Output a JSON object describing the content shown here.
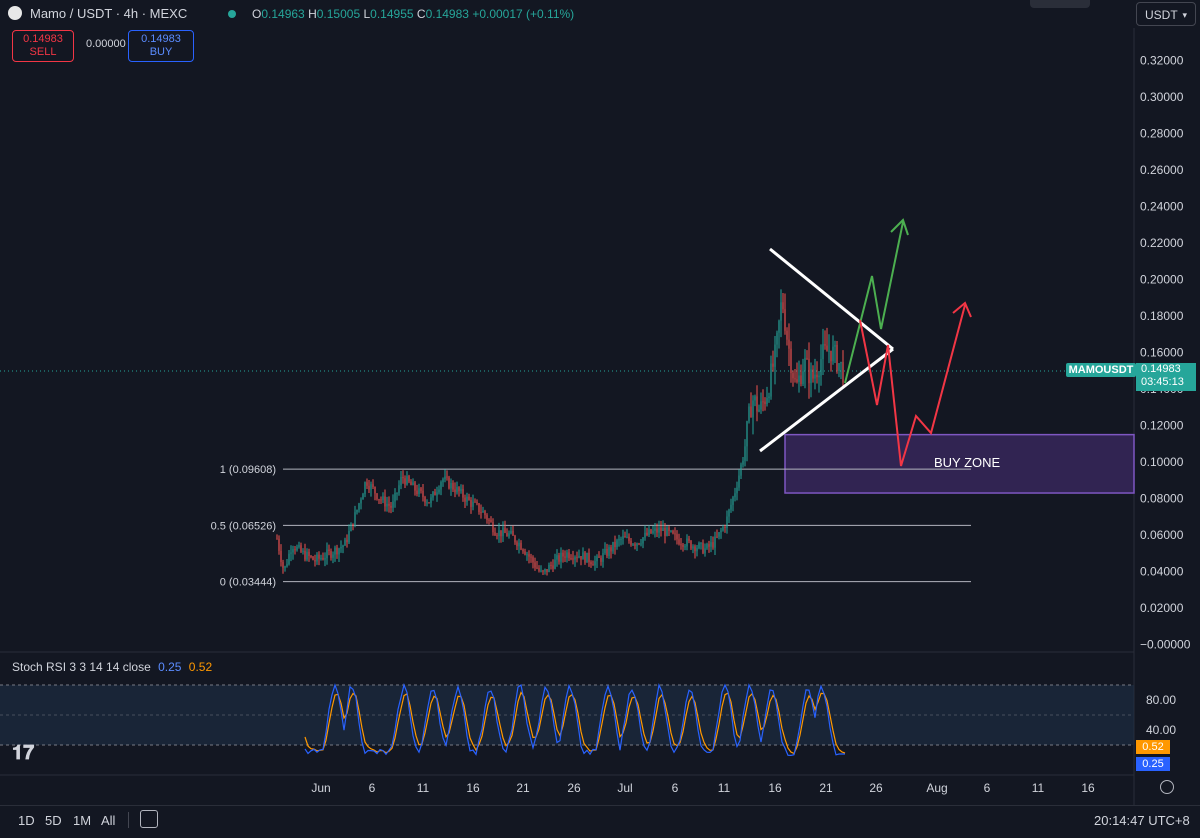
{
  "header": {
    "symbol": "Mamo / USDT · 4h · MEXC",
    "open_key": "O",
    "open": "0.14963",
    "high_key": "H",
    "high": "0.15005",
    "low_key": "L",
    "low": "0.14955",
    "close_key": "C",
    "close": "0.14983",
    "change": "+0.00017 (+0.11%)",
    "currency": "USDT"
  },
  "trade": {
    "sell_price": "0.14983",
    "sell_label": "SELL",
    "spread": "0.00000",
    "buy_price": "0.14983",
    "buy_label": "BUY"
  },
  "price_tag": {
    "symbol": "MAMOUSDT",
    "price": "0.14983",
    "countdown": "03:45:13"
  },
  "stoch_rsi": {
    "label": "Stoch RSI 3 3 14 14 close",
    "k": "0.25",
    "d": "0.52",
    "k_color": "#5b8cff",
    "d_color": "#ff9800"
  },
  "toolbar": {
    "tf_1d": "1D",
    "tf_5d": "5D",
    "tf_1m": "1M",
    "tf_all": "All",
    "clock": "20:14:47 UTC+8"
  },
  "chart_data": {
    "type": "candlestick",
    "ylim": [
      -0.0,
      0.33
    ],
    "price_ticks": [
      "0.32000",
      "0.30000",
      "0.28000",
      "0.26000",
      "0.24000",
      "0.22000",
      "0.20000",
      "0.18000",
      "0.16000",
      "0.14000",
      "0.12000",
      "0.10000",
      "0.08000",
      "0.06000",
      "0.04000",
      "0.02000",
      "−0.00000"
    ],
    "price_tick_values": [
      0.32,
      0.3,
      0.28,
      0.26,
      0.24,
      0.22,
      0.2,
      0.18,
      0.16,
      0.14,
      0.12,
      0.1,
      0.08,
      0.06,
      0.04,
      0.02,
      0.0
    ],
    "x_ticks": [
      "Jun",
      "6",
      "11",
      "16",
      "21",
      "26",
      "Jul",
      "6",
      "11",
      "16",
      "21",
      "26",
      "Aug",
      "6",
      "11",
      "16"
    ],
    "fib_levels": [
      {
        "label": "1 (0.09608)",
        "value": 0.09608
      },
      {
        "label": "0.5 (0.06526)",
        "value": 0.06526
      },
      {
        "label": "0 (0.03444)",
        "value": 0.03444
      }
    ],
    "buy_zone": {
      "label": "BUY ZONE",
      "top": 0.115,
      "bottom": 0.083
    },
    "stoch_ticks": [
      "80.00",
      "40.00"
    ],
    "stoch_tick_values": [
      80,
      40
    ],
    "colors": {
      "up": "#26a69a",
      "down": "#ef5350",
      "bull_path": "#4caf50",
      "bear_path": "#f23645",
      "zone": "#7e57c2"
    }
  }
}
